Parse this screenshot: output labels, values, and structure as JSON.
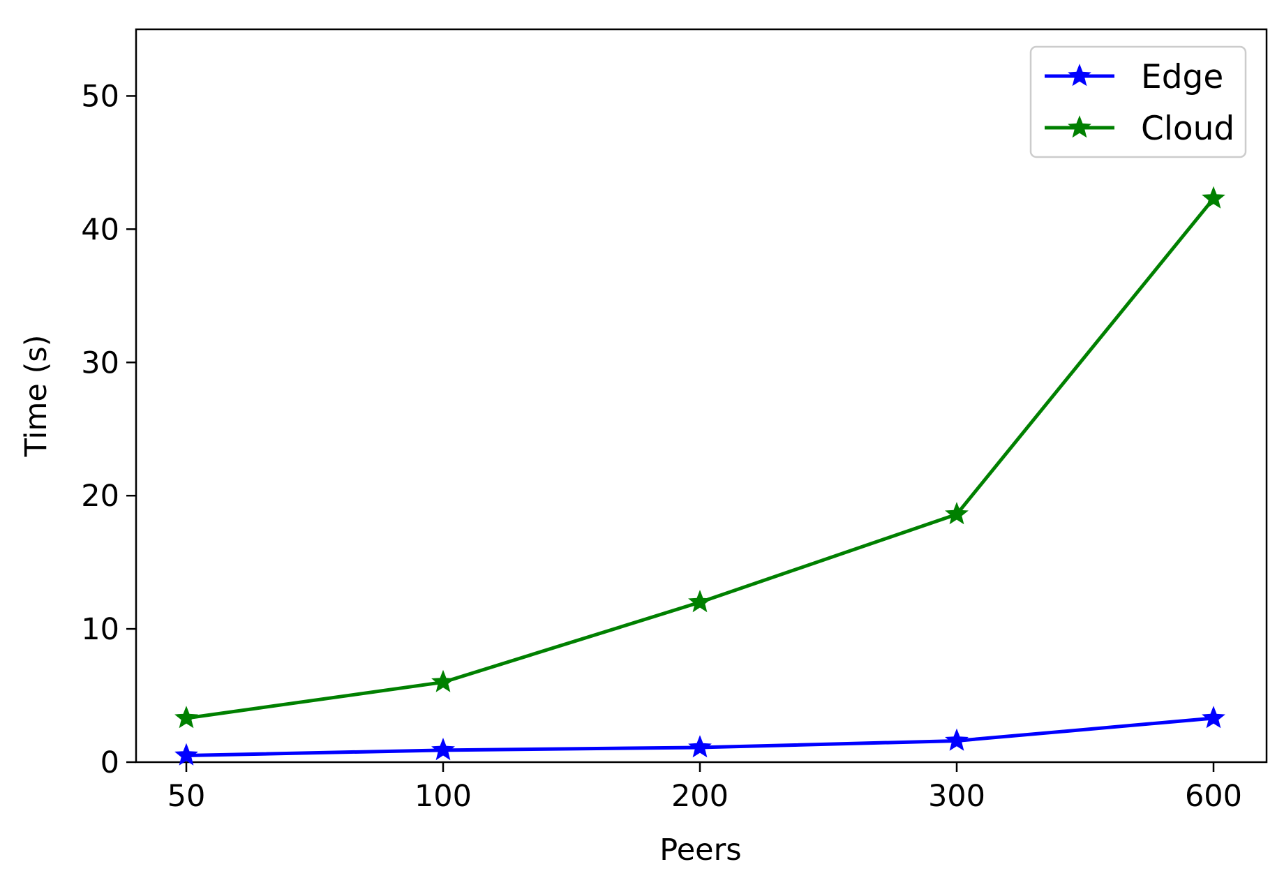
{
  "chart_data": {
    "type": "line",
    "title": "",
    "xlabel": "Peers",
    "ylabel": "Time (s)",
    "categories": [
      "50",
      "100",
      "200",
      "300",
      "600"
    ],
    "ylim": [
      0,
      55
    ],
    "yticks": [
      0,
      10,
      20,
      30,
      40,
      50
    ],
    "grid": false,
    "legend_position": "top-right",
    "series": [
      {
        "name": "Edge",
        "color": "#0000ff",
        "marker": "star",
        "values": [
          0.5,
          0.9,
          1.1,
          1.6,
          3.3
        ]
      },
      {
        "name": "Cloud",
        "color": "#008000",
        "marker": "star",
        "values": [
          3.3,
          6.0,
          12.0,
          18.6,
          42.3
        ]
      }
    ]
  }
}
